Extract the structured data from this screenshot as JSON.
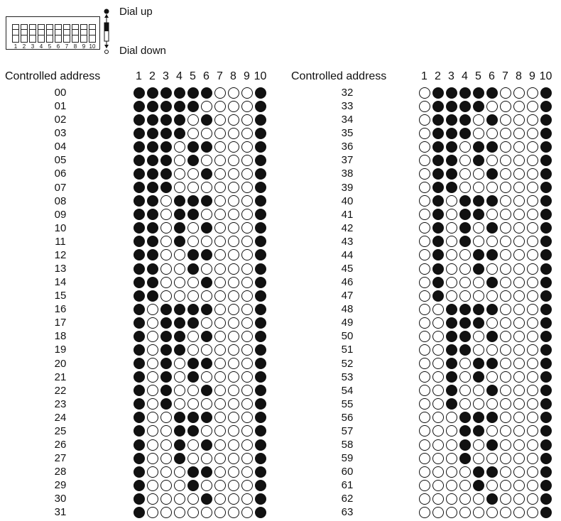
{
  "legend": {
    "dial_up": "Dial up",
    "dial_down": "Dial down",
    "switch_numbers": [
      "1",
      "2",
      "3",
      "4",
      "5",
      "6",
      "7",
      "8",
      "9",
      "10"
    ]
  },
  "header": {
    "address_label": "Controlled address",
    "switch_labels": [
      "1",
      "2",
      "3",
      "4",
      "5",
      "6",
      "7",
      "8",
      "9",
      "10"
    ]
  },
  "pattern_key": {
    "1": "filled circle = dial up",
    "0": "empty circle = dial down"
  },
  "left_rows": [
    {
      "address": "00",
      "pattern": "1111110001"
    },
    {
      "address": "01",
      "pattern": "1111100001"
    },
    {
      "address": "02",
      "pattern": "1111010001"
    },
    {
      "address": "03",
      "pattern": "1111000001"
    },
    {
      "address": "04",
      "pattern": "1110110001"
    },
    {
      "address": "05",
      "pattern": "1110100001"
    },
    {
      "address": "06",
      "pattern": "1110010001"
    },
    {
      "address": "07",
      "pattern": "1110000001"
    },
    {
      "address": "08",
      "pattern": "1101110001"
    },
    {
      "address": "09",
      "pattern": "1101100001"
    },
    {
      "address": "10",
      "pattern": "1101010001"
    },
    {
      "address": "11",
      "pattern": "1101000001"
    },
    {
      "address": "12",
      "pattern": "1100110001"
    },
    {
      "address": "13",
      "pattern": "1100100001"
    },
    {
      "address": "14",
      "pattern": "1100010001"
    },
    {
      "address": "15",
      "pattern": "1100000001"
    },
    {
      "address": "16",
      "pattern": "1011110001"
    },
    {
      "address": "17",
      "pattern": "1011100001"
    },
    {
      "address": "18",
      "pattern": "1011010001"
    },
    {
      "address": "19",
      "pattern": "1011000001"
    },
    {
      "address": "20",
      "pattern": "1010110001"
    },
    {
      "address": "21",
      "pattern": "1010100001"
    },
    {
      "address": "22",
      "pattern": "1010010001"
    },
    {
      "address": "23",
      "pattern": "1010000001"
    },
    {
      "address": "24",
      "pattern": "1001110001"
    },
    {
      "address": "25",
      "pattern": "1001100001"
    },
    {
      "address": "26",
      "pattern": "1001010001"
    },
    {
      "address": "27",
      "pattern": "1001000001"
    },
    {
      "address": "28",
      "pattern": "1000110001"
    },
    {
      "address": "29",
      "pattern": "1000100001"
    },
    {
      "address": "30",
      "pattern": "1000010001"
    },
    {
      "address": "31",
      "pattern": "1000000001"
    }
  ],
  "right_rows": [
    {
      "address": "32",
      "pattern": "0111110001"
    },
    {
      "address": "33",
      "pattern": "0111100001"
    },
    {
      "address": "34",
      "pattern": "0111010001"
    },
    {
      "address": "35",
      "pattern": "0111000001"
    },
    {
      "address": "36",
      "pattern": "0110110001"
    },
    {
      "address": "37",
      "pattern": "0110100001"
    },
    {
      "address": "38",
      "pattern": "0110010001"
    },
    {
      "address": "39",
      "pattern": "0110000001"
    },
    {
      "address": "40",
      "pattern": "0101110001"
    },
    {
      "address": "41",
      "pattern": "0101100001"
    },
    {
      "address": "42",
      "pattern": "0101010001"
    },
    {
      "address": "43",
      "pattern": "0101000001"
    },
    {
      "address": "44",
      "pattern": "0100110001"
    },
    {
      "address": "45",
      "pattern": "0100100001"
    },
    {
      "address": "46",
      "pattern": "0100010001"
    },
    {
      "address": "47",
      "pattern": "0100000001"
    },
    {
      "address": "48",
      "pattern": "0011110001"
    },
    {
      "address": "49",
      "pattern": "0011100001"
    },
    {
      "address": "50",
      "pattern": "0011010001"
    },
    {
      "address": "51",
      "pattern": "0011000001"
    },
    {
      "address": "52",
      "pattern": "0010110001"
    },
    {
      "address": "53",
      "pattern": "0010100001"
    },
    {
      "address": "54",
      "pattern": "0010010001"
    },
    {
      "address": "55",
      "pattern": "0010000001"
    },
    {
      "address": "56",
      "pattern": "0001110001"
    },
    {
      "address": "57",
      "pattern": "0001100001"
    },
    {
      "address": "58",
      "pattern": "0001010001"
    },
    {
      "address": "59",
      "pattern": "0001000001"
    },
    {
      "address": "60",
      "pattern": "0000110001"
    },
    {
      "address": "61",
      "pattern": "0000100001"
    },
    {
      "address": "62",
      "pattern": "0000010001"
    },
    {
      "address": "63",
      "pattern": "0000000001"
    }
  ]
}
